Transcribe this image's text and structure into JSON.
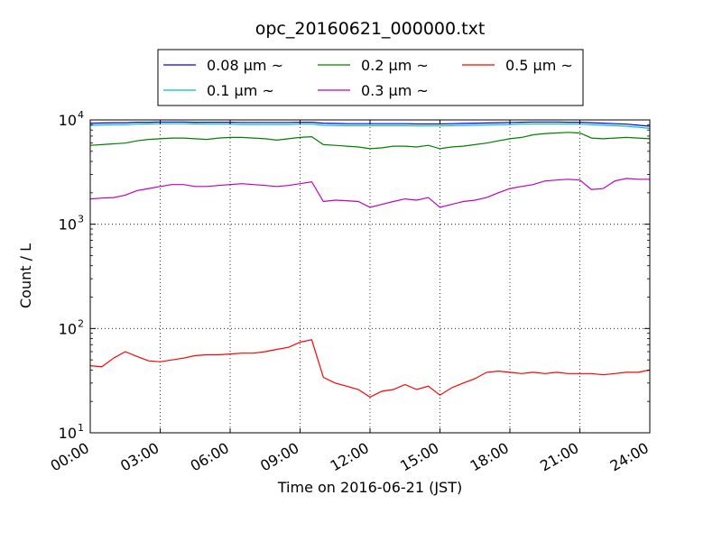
{
  "chart_data": {
    "type": "line",
    "title": "opc_20160621_000000.txt",
    "xlabel": "Time on 2016-06-21 (JST)",
    "ylabel": "Count / L",
    "y_scale": "log",
    "ylim": [
      10,
      10000
    ],
    "xlim": [
      0,
      24
    ],
    "grid": true,
    "legend_position": "top-center",
    "x_ticks": [
      {
        "value": 0,
        "label": "00:00"
      },
      {
        "value": 3,
        "label": "03:00"
      },
      {
        "value": 6,
        "label": "06:00"
      },
      {
        "value": 9,
        "label": "09:00"
      },
      {
        "value": 12,
        "label": "12:00"
      },
      {
        "value": 15,
        "label": "15:00"
      },
      {
        "value": 18,
        "label": "18:00"
      },
      {
        "value": 21,
        "label": "21:00"
      },
      {
        "value": 24,
        "label": "24:00"
      }
    ],
    "y_ticks": [
      {
        "value": 10,
        "base": "10",
        "exp": "1"
      },
      {
        "value": 100,
        "base": "10",
        "exp": "2"
      },
      {
        "value": 1000,
        "base": "10",
        "exp": "3"
      },
      {
        "value": 10000,
        "base": "10",
        "exp": "4"
      }
    ],
    "x": [
      0,
      0.5,
      1,
      1.5,
      2,
      2.5,
      3,
      3.5,
      4,
      4.5,
      5,
      5.5,
      6,
      6.5,
      7,
      7.5,
      8,
      8.5,
      9,
      9.5,
      10,
      10.5,
      11,
      11.5,
      12,
      12.5,
      13,
      13.5,
      14,
      14.5,
      15,
      15.5,
      16,
      16.5,
      17,
      17.5,
      18,
      18.5,
      19,
      19.5,
      20,
      20.5,
      21,
      21.5,
      22,
      22.5,
      23,
      23.5,
      24
    ],
    "series": [
      {
        "name": "0.08 μm ~",
        "color": "#0000ff",
        "values": [
          9300,
          9350,
          9400,
          9400,
          9500,
          9500,
          9550,
          9550,
          9550,
          9500,
          9500,
          9500,
          9500,
          9450,
          9450,
          9450,
          9450,
          9450,
          9500,
          9500,
          9300,
          9250,
          9200,
          9200,
          9200,
          9200,
          9200,
          9200,
          9150,
          9150,
          9150,
          9200,
          9250,
          9300,
          9350,
          9400,
          9450,
          9500,
          9550,
          9550,
          9550,
          9500,
          9500,
          9400,
          9300,
          9200,
          9100,
          8900,
          8700
        ]
      },
      {
        "name": "0.1 μm ~",
        "color": "#00bfbf",
        "values": [
          8900,
          8950,
          9000,
          9000,
          9100,
          9150,
          9200,
          9200,
          9200,
          9150,
          9100,
          9100,
          9100,
          9050,
          9050,
          9050,
          9050,
          9050,
          9100,
          9100,
          8900,
          8850,
          8800,
          8800,
          8800,
          8800,
          8800,
          8800,
          8750,
          8750,
          8750,
          8800,
          8850,
          8900,
          8950,
          9000,
          9050,
          9100,
          9150,
          9150,
          9150,
          9100,
          9100,
          9000,
          8900,
          8800,
          8700,
          8500,
          8300
        ]
      },
      {
        "name": "0.2 μm ~",
        "color": "#008000",
        "values": [
          5700,
          5800,
          5900,
          6000,
          6300,
          6500,
          6600,
          6700,
          6700,
          6600,
          6500,
          6700,
          6800,
          6800,
          6700,
          6600,
          6400,
          6600,
          6800,
          6900,
          5800,
          5700,
          5600,
          5500,
          5300,
          5400,
          5600,
          5600,
          5500,
          5700,
          5300,
          5500,
          5600,
          5800,
          6000,
          6300,
          6600,
          6800,
          7200,
          7400,
          7500,
          7600,
          7500,
          6700,
          6600,
          6700,
          6800,
          6700,
          6600
        ]
      },
      {
        "name": "0.3 μm ~",
        "color": "#bf00bf",
        "values": [
          1750,
          1780,
          1800,
          1900,
          2100,
          2200,
          2300,
          2400,
          2400,
          2300,
          2300,
          2350,
          2400,
          2450,
          2400,
          2350,
          2300,
          2350,
          2450,
          2550,
          1650,
          1700,
          1680,
          1650,
          1450,
          1550,
          1650,
          1750,
          1700,
          1800,
          1450,
          1550,
          1650,
          1700,
          1800,
          2000,
          2200,
          2300,
          2400,
          2600,
          2650,
          2700,
          2650,
          2150,
          2200,
          2600,
          2750,
          2700,
          2700
        ]
      },
      {
        "name": "0.5 μm ~",
        "color": "#ff0000",
        "values": [
          44,
          43,
          52,
          60,
          54,
          49,
          48,
          50,
          52,
          55,
          56,
          56,
          57,
          58,
          58,
          60,
          63,
          66,
          74,
          78,
          34,
          30,
          28,
          26,
          22,
          25,
          26,
          29,
          26,
          28,
          23,
          27,
          30,
          33,
          38,
          39,
          38,
          37,
          38,
          37,
          38,
          37,
          37,
          37,
          36,
          37,
          38,
          38,
          40
        ]
      }
    ]
  }
}
